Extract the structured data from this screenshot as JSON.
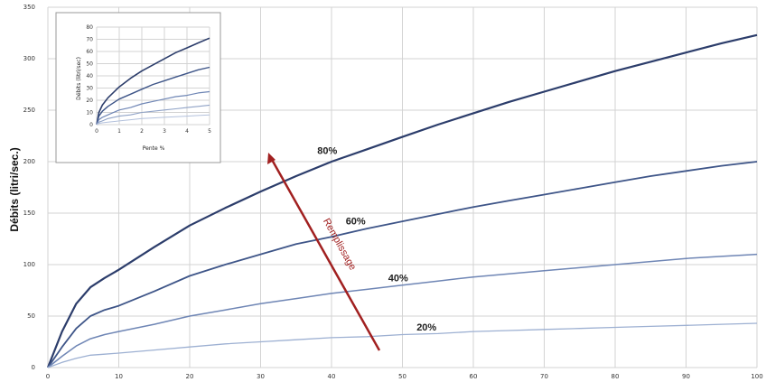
{
  "chart_data": [
    {
      "type": "line",
      "title": "",
      "xlabel": "",
      "ylabel": "Débits (litri/sec.)",
      "xlim": [
        0,
        100
      ],
      "ylim": [
        0,
        350
      ],
      "x_ticks": [
        "0",
        "10",
        "20",
        "30",
        "40",
        "50",
        "60",
        "70",
        "80",
        "90",
        "100"
      ],
      "y_ticks": [
        "0",
        "50",
        "100",
        "150",
        "200",
        "250",
        "300",
        "350"
      ],
      "grid": true,
      "x": [
        0,
        2,
        4,
        6,
        8,
        10,
        15,
        20,
        25,
        30,
        35,
        40,
        45,
        50,
        55,
        60,
        65,
        70,
        75,
        80,
        85,
        90,
        95,
        100
      ],
      "series": [
        {
          "name": "80%",
          "values": [
            0,
            35,
            62,
            78,
            87,
            95,
            117,
            138,
            155,
            171,
            186,
            200,
            212,
            224,
            236,
            247,
            258,
            268,
            278,
            288,
            297,
            306,
            315,
            323
          ]
        },
        {
          "name": "60%",
          "values": [
            0,
            20,
            38,
            50,
            56,
            60,
            74,
            89,
            100,
            110,
            120,
            127,
            135,
            142,
            149,
            156,
            162,
            168,
            174,
            180,
            186,
            191,
            196,
            200
          ]
        },
        {
          "name": "40%",
          "values": [
            0,
            11,
            21,
            28,
            32,
            35,
            42,
            50,
            56,
            62,
            67,
            72,
            76,
            80,
            84,
            88,
            91,
            94,
            97,
            100,
            103,
            106,
            108,
            110
          ]
        },
        {
          "name": "20%",
          "values": [
            0,
            5,
            9,
            12,
            13,
            14,
            17,
            20,
            23,
            25,
            27,
            29,
            30,
            32,
            33,
            35,
            36,
            37,
            38,
            39,
            40,
            41,
            42,
            43
          ]
        }
      ],
      "line_colors": [
        "#2c3d6b",
        "#3e5588",
        "#6f86b5",
        "#9db0d2"
      ],
      "annotation": {
        "text": "Remplissage",
        "color": "#a12020"
      }
    },
    {
      "type": "line",
      "title": "",
      "xlabel": "Pente %",
      "ylabel": "Débits (litri/sec)",
      "xlim": [
        0,
        5
      ],
      "ylim": [
        0,
        80
      ],
      "x_ticks": [
        "0",
        "1",
        "2",
        "3",
        "4",
        "5"
      ],
      "y_ticks": [
        "0",
        "10",
        "20",
        "30",
        "40",
        "50",
        "60",
        "70",
        "80"
      ],
      "grid": true,
      "x": [
        0,
        0.1,
        0.25,
        0.5,
        1,
        1.5,
        2,
        2.5,
        3,
        3.5,
        4,
        4.5,
        5
      ],
      "series": [
        {
          "values": [
            0,
            10,
            16,
            22,
            31,
            38,
            44,
            49,
            54,
            59,
            63,
            67,
            71
          ]
        },
        {
          "values": [
            0,
            7,
            11,
            15,
            21,
            25,
            29,
            33,
            36,
            39,
            42,
            45,
            47
          ]
        },
        {
          "values": [
            0,
            4,
            6,
            8,
            12,
            14,
            17,
            19,
            21,
            23,
            24,
            26,
            27
          ]
        },
        {
          "values": [
            0,
            2,
            3,
            5,
            7,
            8,
            10,
            11,
            12,
            13,
            14,
            15,
            16
          ]
        },
        {
          "values": [
            0,
            1,
            1.5,
            2,
            3,
            4,
            5,
            5.5,
            6,
            6.5,
            7,
            7.5,
            8
          ]
        }
      ],
      "line_colors": [
        "#2c3d6b",
        "#3e5588",
        "#6f86b5",
        "#8fa2c6",
        "#b3c1dc"
      ]
    }
  ]
}
